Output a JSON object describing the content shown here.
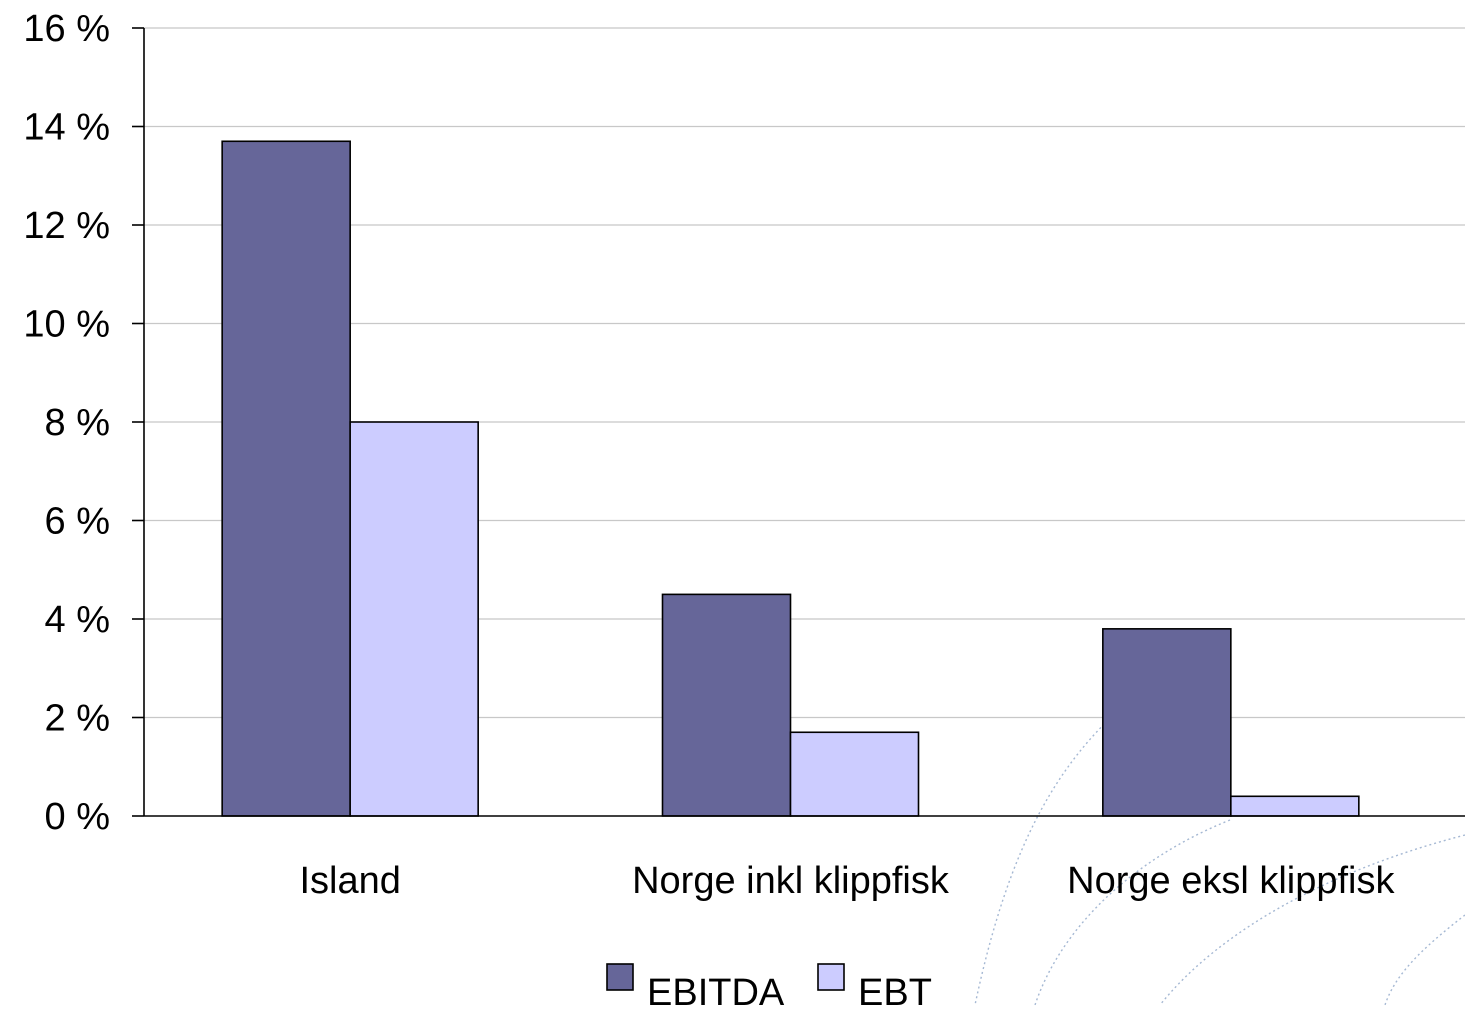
{
  "chart_data": {
    "type": "bar",
    "categories": [
      "Island",
      "Norge inkl klippfisk",
      "Norge eksl klippfisk"
    ],
    "series": [
      {
        "name": "EBITDA",
        "values": [
          13.7,
          4.5,
          3.8
        ],
        "color": "#666699"
      },
      {
        "name": "EBT",
        "values": [
          8.0,
          1.7,
          0.4
        ],
        "color": "#ccccff"
      }
    ],
    "ylim": [
      0,
      16
    ],
    "yticks": [
      0,
      2,
      4,
      6,
      8,
      10,
      12,
      14,
      16
    ],
    "ytick_labels": [
      "0 %",
      "2 %",
      "4 %",
      "6 %",
      "8 %",
      "10 %",
      "12 %",
      "14 %",
      "16 %"
    ],
    "grid": true,
    "legend": "bottom-center"
  }
}
